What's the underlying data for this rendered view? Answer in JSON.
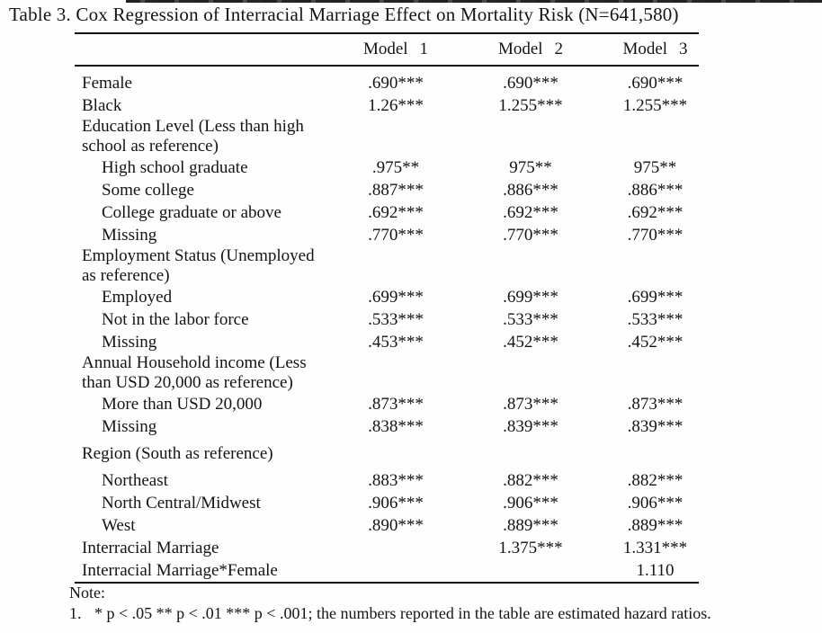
{
  "title": "Table 3. Cox Regression of Interracial Marriage Effect on Mortality Risk (N=641,580)",
  "table": {
    "columns": [
      {
        "label": "Model",
        "number": "1"
      },
      {
        "label": "Model",
        "number": "2"
      },
      {
        "label": "Model",
        "number": "3"
      }
    ],
    "rows": [
      {
        "label": "Female",
        "type": "data",
        "indent": 0,
        "values": [
          ".690***",
          ".690***",
          ".690***"
        ]
      },
      {
        "label": "Black",
        "type": "data",
        "indent": 0,
        "values": [
          "1.26***",
          "1.255***",
          "1.255***"
        ]
      },
      {
        "label": "Education Level (Less than high school as reference)",
        "type": "section",
        "indent": 0,
        "values": [
          "",
          "",
          ""
        ]
      },
      {
        "label": "High school graduate",
        "type": "data",
        "indent": 1,
        "values": [
          ".975**",
          "975**",
          "975**"
        ]
      },
      {
        "label": "Some college",
        "type": "data",
        "indent": 1,
        "values": [
          ".887***",
          ".886***",
          ".886***"
        ]
      },
      {
        "label": "College graduate or above",
        "type": "data",
        "indent": 1,
        "values": [
          ".692***",
          ".692***",
          ".692***"
        ]
      },
      {
        "label": "Missing",
        "type": "data",
        "indent": 1,
        "values": [
          ".770***",
          ".770***",
          ".770***"
        ]
      },
      {
        "label": "Employment Status (Unemployed as reference)",
        "type": "section",
        "indent": 0,
        "values": [
          "",
          "",
          ""
        ]
      },
      {
        "label": "Employed",
        "type": "data",
        "indent": 1,
        "values": [
          ".699***",
          ".699***",
          ".699***"
        ]
      },
      {
        "label": "Not in the labor force",
        "type": "data",
        "indent": 1,
        "values": [
          ".533***",
          ".533***",
          ".533***"
        ]
      },
      {
        "label": "Missing",
        "type": "data",
        "indent": 1,
        "values": [
          ".453***",
          ".452***",
          ".452***"
        ]
      },
      {
        "label": "Annual Household income (Less than USD 20,000 as reference)",
        "type": "section",
        "indent": 0,
        "values": [
          "",
          "",
          ""
        ]
      },
      {
        "label": "More than USD 20,000",
        "type": "data",
        "indent": 1,
        "values": [
          ".873***",
          ".873***",
          ".873***"
        ]
      },
      {
        "label": "Missing",
        "type": "data",
        "indent": 1,
        "values": [
          ".838***",
          ".839***",
          ".839***"
        ]
      },
      {
        "label": "Region (South as reference)",
        "type": "region",
        "indent": 0,
        "values": [
          "",
          "",
          ""
        ]
      },
      {
        "label": "Northeast",
        "type": "data",
        "indent": 1,
        "values": [
          ".883***",
          ".882***",
          ".882***"
        ]
      },
      {
        "label": "North Central/Midwest",
        "type": "data",
        "indent": 1,
        "values": [
          ".906***",
          ".906***",
          ".906***"
        ]
      },
      {
        "label": "West",
        "type": "data",
        "indent": 1,
        "values": [
          ".890***",
          ".889***",
          ".889***"
        ]
      },
      {
        "label": "Interracial Marriage",
        "type": "data",
        "indent": 0,
        "values": [
          "",
          "1.375***",
          "1.331***"
        ]
      },
      {
        "label": "Interracial Marriage*Female",
        "type": "data",
        "indent": 0,
        "values": [
          "",
          "",
          "1.110"
        ]
      }
    ]
  },
  "note": {
    "heading": "Note:",
    "item_number": "1.",
    "item_text": "* p < .05 ** p < .01 *** p < .001; the numbers reported in the table are estimated hazard ratios."
  }
}
